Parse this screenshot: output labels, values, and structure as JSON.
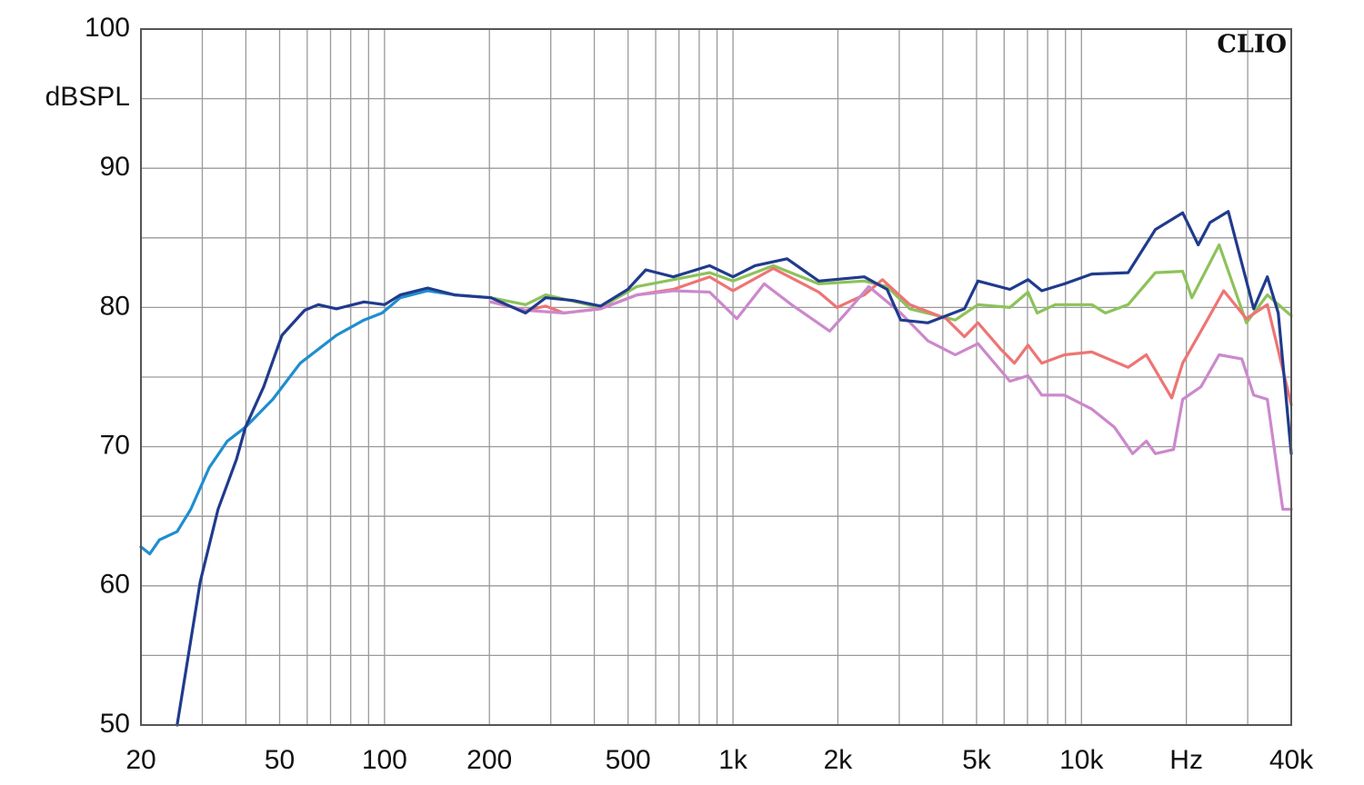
{
  "chart_data": {
    "type": "line",
    "xscale": "log",
    "y_label": "dBSPL",
    "watermark": "CLIO",
    "grid": true,
    "xlim": [
      20,
      40000
    ],
    "ylim": [
      50,
      100
    ],
    "xticks": [
      20,
      50,
      100,
      200,
      500,
      {
        "value": 1000,
        "label": "1k"
      },
      {
        "value": 2000,
        "label": "2k"
      },
      {
        "value": 5000,
        "label": "5k"
      },
      {
        "value": 10000,
        "label": "10k"
      },
      {
        "value": 20000,
        "label": "Hz"
      },
      {
        "value": 40000,
        "label": "40k"
      }
    ],
    "yticks": [
      50,
      60,
      70,
      80,
      90,
      100
    ],
    "x_minor_ticks": [
      30,
      40,
      60,
      70,
      80,
      90,
      300,
      400,
      600,
      700,
      800,
      900,
      3000,
      4000,
      6000,
      7000,
      8000,
      9000,
      30000
    ],
    "y_minor_ticks": [
      55,
      65,
      75,
      85,
      95
    ],
    "series": [
      {
        "color": "#1e8ed0",
        "x": [
          20,
          21.2,
          22.6,
          25.4,
          27.8,
          31.4,
          35.4,
          39.9,
          47.8,
          57.3,
          72.8,
          87.3,
          98.4,
          111,
          133,
          159,
          202
        ],
        "values": [
          62.8,
          62.3,
          63.3,
          63.9,
          65.5,
          68.5,
          70.4,
          71.4,
          73.4,
          76,
          78,
          79.1,
          79.6,
          80.7,
          81.2,
          80.9,
          80.7
        ]
      },
      {
        "color": "#8dc25a",
        "x": [
          202,
          254,
          290,
          417,
          530,
          674,
          857,
          1000,
          1305,
          1763,
          2380,
          2767,
          3217,
          4343,
          5048,
          6231,
          7025,
          7462,
          8414,
          10706,
          11714,
          13614,
          16300,
          19520,
          20740,
          24840,
          29750,
          34160,
          40000
        ],
        "values": [
          80.7,
          80.2,
          80.9,
          80,
          81.5,
          82,
          82.5,
          81.9,
          83,
          81.7,
          81.9,
          81.5,
          79.9,
          79.1,
          80.2,
          80,
          81.1,
          79.6,
          80.2,
          80.2,
          79.6,
          80.2,
          82.5,
          82.6,
          80.7,
          84.5,
          78.9,
          80.9,
          79.4
        ]
      },
      {
        "color": "#ee7474",
        "x": [
          202,
          254,
          290,
          327,
          417,
          530,
          674,
          857,
          1000,
          1305,
          1763,
          1988,
          2380,
          2685,
          3217,
          4091,
          4614,
          5048,
          5868,
          6421,
          7025,
          7690,
          8936,
          10706,
          13614,
          15352,
          18164,
          19520,
          22030,
          25600,
          29750,
          34160,
          40000
        ],
        "values": [
          80.4,
          79.8,
          80.1,
          79.6,
          79.9,
          80.9,
          81.3,
          82.2,
          81.2,
          82.8,
          81.1,
          80,
          80.9,
          82,
          80.2,
          79.2,
          77.9,
          78.9,
          77,
          76,
          77.3,
          76,
          76.6,
          76.8,
          75.7,
          76.6,
          73.5,
          76,
          78.3,
          81.2,
          79.2,
          80.2,
          73
        ]
      },
      {
        "color": "#cc88cc",
        "x": [
          202,
          254,
          327,
          417,
          530,
          674,
          857,
          1026,
          1229,
          1472,
          1894,
          2111,
          2453,
          3029,
          3627,
          4343,
          5048,
          6231,
          7025,
          7690,
          8936,
          10706,
          12440,
          14030,
          15352,
          16300,
          18383,
          19520,
          22030,
          24840,
          28870,
          31210,
          34160,
          37820,
          40000
        ],
        "values": [
          80.4,
          79.8,
          79.6,
          79.9,
          80.9,
          81.2,
          81.1,
          79.2,
          81.7,
          80.2,
          78.3,
          79.6,
          81.5,
          79.6,
          77.6,
          76.6,
          77.4,
          74.7,
          75.1,
          73.7,
          73.7,
          72.7,
          71.4,
          69.5,
          70.4,
          69.5,
          69.8,
          73.4,
          74.3,
          76.6,
          76.3,
          73.7,
          73.4,
          65.5,
          65.5
        ]
      },
      {
        "color": "#203b8c",
        "x": [
          25.4,
          29.6,
          33.3,
          37.6,
          39.9,
          45,
          50.8,
          59,
          64.6,
          72.8,
          87.3,
          100,
          111,
          133,
          159,
          202,
          254,
          290,
          348,
          417,
          499,
          562,
          674,
          857,
          1000,
          1157,
          1429,
          1763,
          2380,
          2767,
          3029,
          3627,
          4614,
          5048,
          6231,
          7025,
          7690,
          8936,
          10706,
          13614,
          16300,
          19520,
          21630,
          23390,
          26380,
          31210,
          34160,
          36700,
          40000
        ],
        "values": [
          50,
          60.3,
          65.5,
          69.1,
          71.4,
          74.3,
          78,
          79.8,
          80.2,
          79.9,
          80.4,
          80.2,
          80.9,
          81.4,
          80.9,
          80.7,
          79.6,
          80.7,
          80.5,
          80.1,
          81.3,
          82.7,
          82.2,
          83,
          82.2,
          83,
          83.5,
          81.9,
          82.2,
          81.3,
          79.1,
          78.9,
          79.9,
          81.9,
          81.3,
          82,
          81.2,
          81.7,
          82.4,
          82.5,
          85.6,
          86.8,
          84.5,
          86.1,
          86.9,
          79.9,
          82.2,
          79.6,
          69.5
        ]
      }
    ]
  }
}
